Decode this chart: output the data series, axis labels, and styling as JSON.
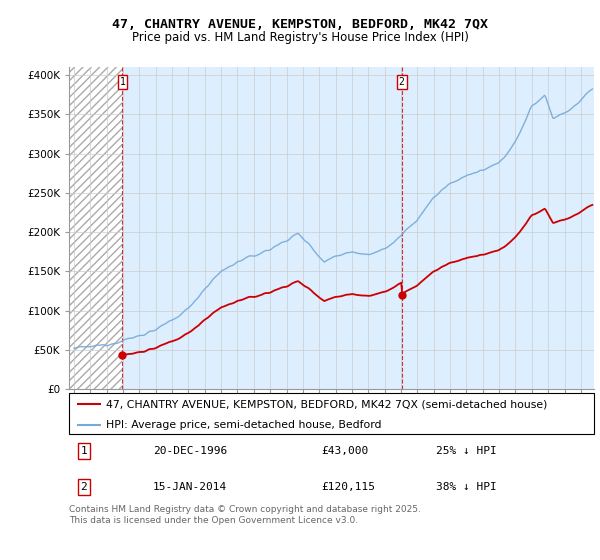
{
  "title": "47, CHANTRY AVENUE, KEMPSTON, BEDFORD, MK42 7QX",
  "subtitle": "Price paid vs. HM Land Registry's House Price Index (HPI)",
  "ylabel_ticks": [
    0,
    50000,
    100000,
    150000,
    200000,
    250000,
    300000,
    350000,
    400000
  ],
  "ylabel_labels": [
    "£0",
    "£50K",
    "£100K",
    "£150K",
    "£200K",
    "£250K",
    "£300K",
    "£350K",
    "£400K"
  ],
  "ylim": [
    0,
    410000
  ],
  "xlim_start": 1993.7,
  "xlim_end": 2025.8,
  "sale1_x": 1996.97,
  "sale1_y": 43000,
  "sale2_x": 2014.04,
  "sale2_y": 120115,
  "sale1_label": "1",
  "sale2_label": "2",
  "sale1_date": "20-DEC-1996",
  "sale1_price": "£43,000",
  "sale1_hpi": "25% ↓ HPI",
  "sale2_date": "15-JAN-2014",
  "sale2_price": "£120,115",
  "sale2_hpi": "38% ↓ HPI",
  "legend_line1": "47, CHANTRY AVENUE, KEMPSTON, BEDFORD, MK42 7QX (semi-detached house)",
  "legend_line2": "HPI: Average price, semi-detached house, Bedford",
  "footer": "Contains HM Land Registry data © Crown copyright and database right 2025.\nThis data is licensed under the Open Government Licence v3.0.",
  "line_color_red": "#cc0000",
  "line_color_blue": "#74a9d8",
  "hatch_bg_color": "#ddeeff",
  "grid_color": "#cccccc",
  "title_fontsize": 9.5,
  "subtitle_fontsize": 8.5,
  "tick_fontsize": 7.5,
  "legend_fontsize": 7.8,
  "footer_fontsize": 6.5
}
